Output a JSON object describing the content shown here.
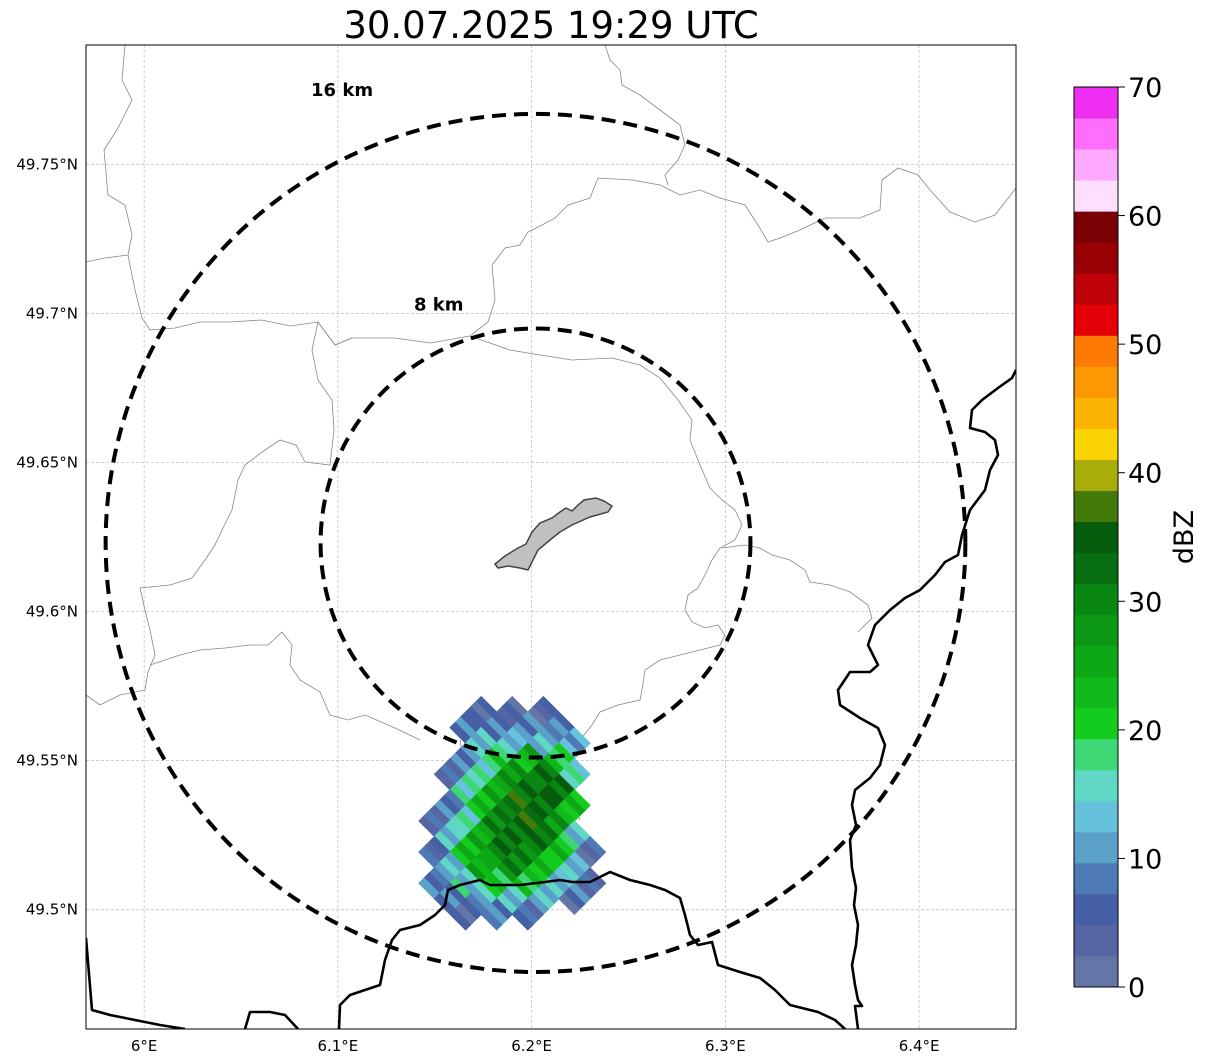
{
  "title": "30.07.2025 19:29 UTC",
  "map": {
    "lon_range": [
      5.97,
      6.45
    ],
    "lat_range": [
      49.46,
      49.79
    ],
    "lon_ticks": [
      {
        "value": 6.0,
        "label": "6°E"
      },
      {
        "value": 6.1,
        "label": "6.1°E"
      },
      {
        "value": 6.2,
        "label": "6.2°E"
      },
      {
        "value": 6.3,
        "label": "6.3°E"
      },
      {
        "value": 6.4,
        "label": "6.4°E"
      }
    ],
    "lat_ticks": [
      {
        "value": 49.75,
        "label": "49.75°N"
      },
      {
        "value": 49.7,
        "label": "49.7°N"
      },
      {
        "value": 49.65,
        "label": "49.65°N"
      },
      {
        "value": 49.6,
        "label": "49.6°N"
      },
      {
        "value": 49.55,
        "label": "49.55°N"
      },
      {
        "value": 49.5,
        "label": "49.5°N"
      }
    ],
    "grid": true,
    "radar_center": {
      "lon": 6.202,
      "lat": 49.623
    },
    "range_rings": [
      {
        "radius_km": 8,
        "label": "8 km"
      },
      {
        "radius_km": 16,
        "label": "16 km"
      }
    ],
    "city_fill": "#c0c0c0",
    "border_color": "#000000",
    "commune_color": "#888888"
  },
  "colorbar": {
    "label": "dBZ",
    "min": 0,
    "max": 70,
    "tick_labels": [
      "0",
      "10",
      "20",
      "30",
      "40",
      "50",
      "60",
      "70"
    ],
    "colors": [
      "#6475a8",
      "#5665a3",
      "#4660a5",
      "#4d79b4",
      "#5aa0c8",
      "#66c2dc",
      "#60d6c4",
      "#3ed776",
      "#14cc1e",
      "#10b91a",
      "#0ea816",
      "#0c9714",
      "#0a8613",
      "#086f10",
      "#055c0c",
      "#437a0a",
      "#a9ad0a",
      "#fad302",
      "#fdb302",
      "#fd9803",
      "#fd7a04",
      "#e40006",
      "#bf0007",
      "#990006",
      "#7a0004",
      "#ffdfff",
      "#ffaaff",
      "#ff6eff",
      "#ee2ef0"
    ]
  },
  "echo": {
    "center_lon": 6.19,
    "center_lat": 49.53,
    "dbz_grid": [
      [
        0,
        0,
        3,
        8,
        10,
        0,
        0,
        0,
        0,
        0
      ],
      [
        0,
        4,
        8,
        14,
        20,
        18,
        0,
        0,
        0,
        0
      ],
      [
        5,
        10,
        14,
        24,
        30,
        32,
        22,
        0,
        0,
        0
      ],
      [
        6,
        12,
        20,
        28,
        33,
        34,
        28,
        16,
        4,
        0
      ],
      [
        0,
        10,
        18,
        26,
        33,
        34,
        30,
        22,
        12,
        6
      ],
      [
        0,
        4,
        14,
        22,
        30,
        33,
        30,
        24,
        14,
        6
      ],
      [
        0,
        0,
        8,
        18,
        26,
        30,
        28,
        20,
        12,
        0
      ],
      [
        0,
        0,
        4,
        12,
        22,
        24,
        22,
        14,
        8,
        0
      ],
      [
        0,
        0,
        0,
        6,
        14,
        16,
        12,
        8,
        0,
        0
      ],
      [
        0,
        0,
        0,
        0,
        6,
        8,
        4,
        0,
        0,
        0
      ]
    ]
  }
}
